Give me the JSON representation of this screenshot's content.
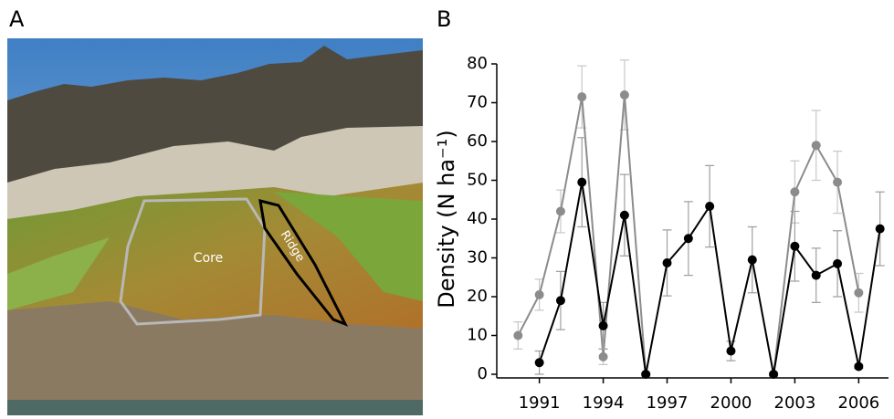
{
  "panel_a": {
    "label": "A",
    "regions": [
      "Core",
      "Ridge"
    ]
  },
  "chart_data": {
    "type": "line",
    "panel_label": "B",
    "y_label": "Density (N ha⁻¹)",
    "x": [
      1990,
      1991,
      1992,
      1993,
      1994,
      1995,
      1996,
      1997,
      1998,
      1999,
      2000,
      2001,
      2002,
      2003,
      2004,
      2005,
      2006,
      2007
    ],
    "series": [
      {
        "color": "#8c8c8c",
        "error_color": "#c8c8c8",
        "values": [
          10,
          20.5,
          42,
          71.5,
          4.5,
          72,
          0,
          null,
          null,
          null,
          null,
          null,
          0,
          47,
          59,
          49.5,
          21,
          null
        ],
        "error": [
          3.5,
          4,
          5.5,
          8,
          2,
          9,
          0.5,
          null,
          null,
          null,
          null,
          null,
          0.5,
          8,
          9,
          8,
          5,
          null
        ]
      },
      {
        "color": "#000000",
        "error_color": "#a0a0a0",
        "values": [
          null,
          3,
          19,
          49.5,
          12.5,
          41,
          0,
          28.7,
          35,
          43.3,
          6,
          29.5,
          0,
          33,
          25.5,
          28.5,
          2,
          37.5
        ],
        "error": [
          null,
          3,
          7.5,
          11.5,
          6,
          10.5,
          0.3,
          8.5,
          9.5,
          10.5,
          2.5,
          8.5,
          0.3,
          9,
          7,
          8.5,
          0.5,
          9.5
        ]
      }
    ],
    "xlim": [
      1989,
      2007.4
    ],
    "xticks": [
      1991,
      1994,
      1997,
      2000,
      2003,
      2006
    ],
    "ylim": [
      0,
      80
    ],
    "yticks": [
      0,
      10,
      20,
      30,
      40,
      50,
      60,
      70,
      80
    ],
    "grid": false
  }
}
